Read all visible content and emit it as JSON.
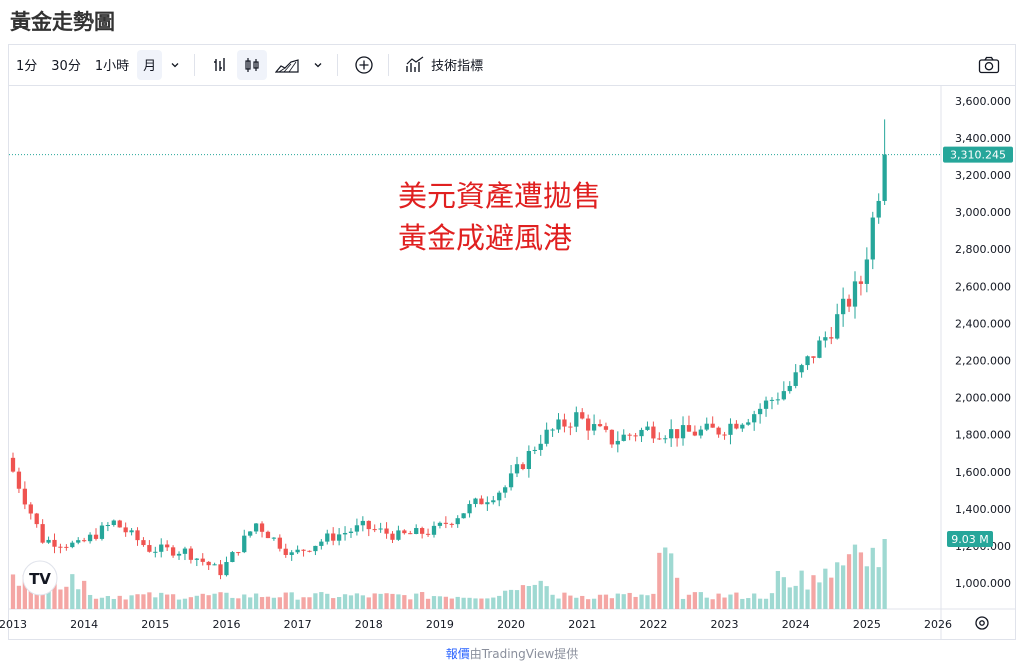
{
  "page_title": "黃金走勢圖",
  "toolbar": {
    "intervals": [
      "1分",
      "30分",
      "1小時",
      "月"
    ],
    "indicators_label": "技術指標",
    "icons": [
      "chevron-down-icon",
      "bar-style-icon",
      "candle-style-icon",
      "area-style-icon",
      "chevron-down-icon",
      "add-compare-icon",
      "indicators-icon",
      "camera-icon"
    ]
  },
  "footer": {
    "prefix": "報價",
    "mid": "由",
    "brand": "TradingView",
    "suffix": "提供"
  },
  "logo_text": "TV",
  "annotation": {
    "line1": "美元資產遭拋售",
    "line2": "黃金成避風港",
    "color": "#e02020"
  },
  "colors": {
    "up": "#26a69a",
    "down": "#ef5350",
    "volume_up": "#9fd9d2",
    "volume_down": "#f4a6a4",
    "price_badge": "#26a69a",
    "volume_badge": "#26a69a"
  },
  "chart_data": {
    "type": "candlestick",
    "title": "黃金走勢圖",
    "interval": "月",
    "xlabel": "",
    "ylabel": "",
    "ylim": [
      860,
      3680
    ],
    "grid": false,
    "y_ticks": [
      "1,000.000",
      "1,200.000",
      "1,400.000",
      "1,600.000",
      "1,800.000",
      "2,000.000",
      "2,200.000",
      "2,400.000",
      "2,600.000",
      "2,800.000",
      "3,000.000",
      "3,200.000",
      "3,400.000",
      "3,600.000"
    ],
    "y_tick_values": [
      1000,
      1200,
      1400,
      1600,
      1800,
      2000,
      2200,
      2400,
      2600,
      2800,
      3000,
      3200,
      3400,
      3600
    ],
    "x_tick_labels": [
      "2013",
      "2014",
      "2015",
      "2016",
      "2017",
      "2018",
      "2019",
      "2020",
      "2021",
      "2022",
      "2023",
      "2024",
      "2025",
      "2026"
    ],
    "last_price": 3310.245,
    "last_price_label": "3,310.245",
    "last_volume_label": "9.03 M",
    "yearly_close_anchors": {
      "2012-12": 1675,
      "2013-06": 1234,
      "2013-12": 1202,
      "2014-06": 1327,
      "2014-12": 1184,
      "2015-06": 1172,
      "2015-12": 1061,
      "2016-06": 1322,
      "2016-12": 1152,
      "2017-06": 1242,
      "2017-12": 1303,
      "2018-06": 1253,
      "2018-12": 1282,
      "2019-06": 1409,
      "2019-12": 1517,
      "2020-06": 1781,
      "2020-12": 1898,
      "2021-06": 1770,
      "2021-12": 1829,
      "2022-06": 1807,
      "2022-12": 1824,
      "2023-06": 1919,
      "2023-12": 2063,
      "2024-06": 2326,
      "2024-12": 2624,
      "2025-03": 3124,
      "2025-04": 3310
    },
    "volume_range": [
      0,
      9.03
    ],
    "volume_unit": "M"
  }
}
